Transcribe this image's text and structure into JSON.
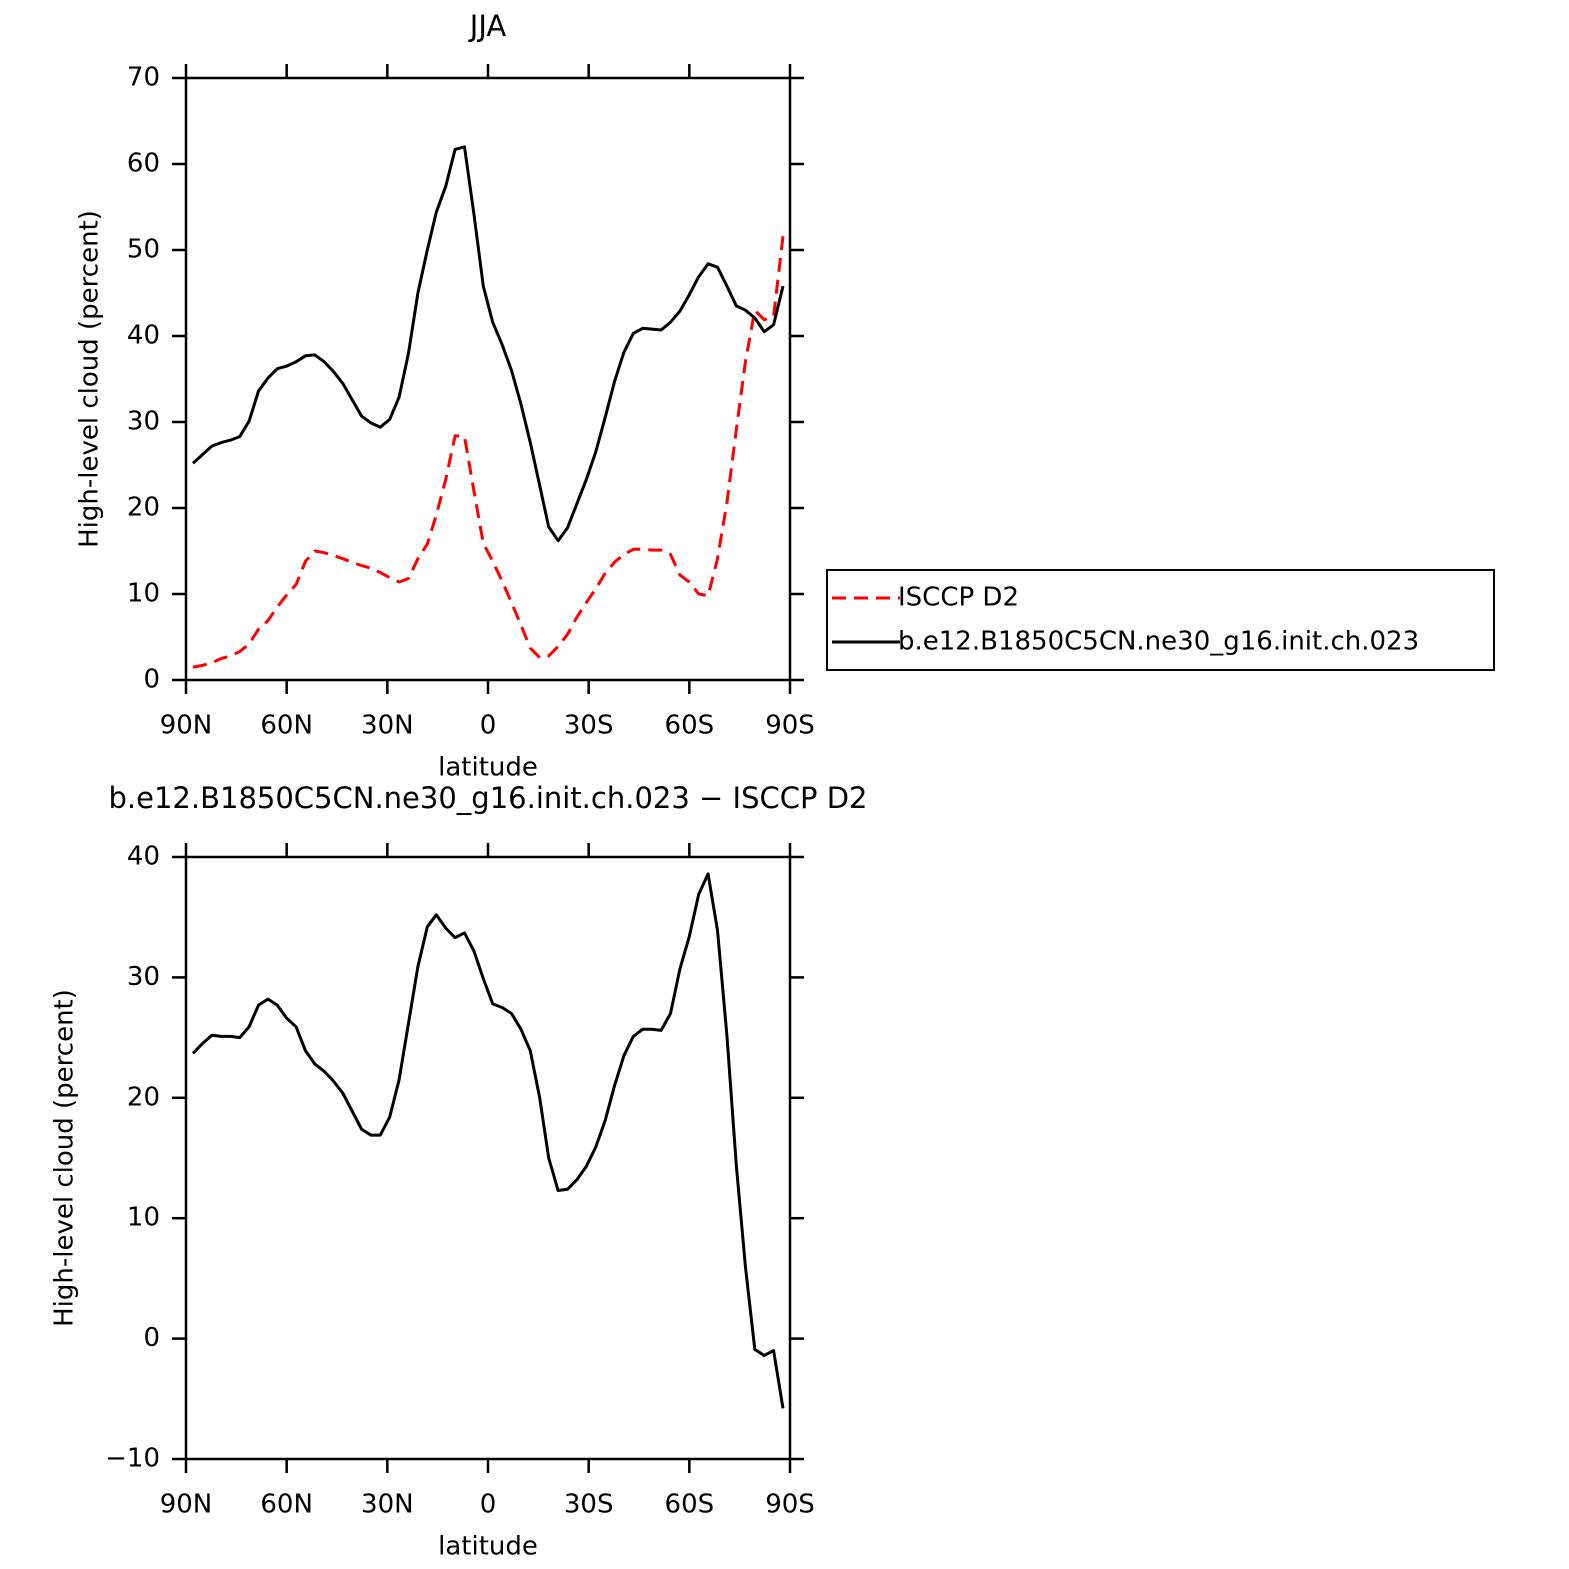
{
  "chart_data": [
    {
      "type": "line",
      "title": "JJA",
      "xlabel": "latitude",
      "ylabel": "High-level cloud (percent)",
      "x": [
        87.9,
        85.1,
        82.3,
        79.5,
        76.7,
        74.0,
        71.2,
        68.4,
        65.6,
        62.8,
        60.0,
        57.2,
        54.4,
        51.6,
        48.8,
        46.1,
        43.3,
        40.5,
        37.7,
        34.9,
        32.1,
        29.3,
        26.5,
        23.7,
        20.9,
        18.1,
        15.4,
        12.6,
        9.8,
        7.0,
        4.2,
        1.4,
        -1.4,
        -4.2,
        -7.0,
        -9.8,
        -12.6,
        -15.4,
        -18.1,
        -20.9,
        -23.7,
        -26.5,
        -29.3,
        -32.1,
        -34.9,
        -37.7,
        -40.5,
        -43.3,
        -46.1,
        -48.8,
        -51.6,
        -54.4,
        -57.2,
        -60.0,
        -62.8,
        -65.6,
        -68.4,
        -71.2,
        -74.0,
        -76.7,
        -79.5,
        -82.3,
        -85.1,
        -87.9
      ],
      "series": [
        {
          "name": "ISCCP D2",
          "color": "#ff0000",
          "dash": "dashed",
          "values": [
            1.5,
            1.7,
            2.0,
            2.5,
            2.8,
            3.3,
            4.2,
            5.9,
            6.9,
            8.5,
            9.9,
            11.1,
            13.8,
            15.0,
            14.8,
            14.5,
            14.1,
            13.7,
            13.3,
            13.0,
            12.5,
            11.9,
            11.4,
            11.8,
            14.1,
            15.8,
            19.2,
            23.3,
            28.4,
            28.3,
            22.0,
            15.9,
            13.8,
            11.5,
            9.0,
            6.4,
            3.7,
            2.6,
            2.8,
            3.9,
            5.3,
            7.3,
            9.0,
            10.6,
            12.4,
            13.7,
            14.6,
            15.2,
            15.2,
            15.1,
            15.1,
            14.6,
            12.2,
            11.4,
            10.0,
            9.8,
            14.1,
            20.6,
            29.1,
            37,
            43,
            41.9,
            42.3,
            51.6
          ]
        },
        {
          "name": "b.e12.B1850C5CN.ne30_g16.init.ch.023",
          "color": "#000000",
          "dash": "solid",
          "values": [
            25.2,
            26.2,
            27.2,
            27.6,
            27.9,
            28.3,
            30.1,
            33.6,
            35.1,
            36.2,
            36.5,
            37,
            37.7,
            37.8,
            37,
            35.9,
            34.5,
            32.6,
            30.7,
            29.9,
            29.4,
            30.3,
            32.9,
            38,
            45,
            50,
            54.4,
            57.4,
            61.7,
            62,
            54.2,
            45.8,
            41.6,
            39,
            36,
            32.1,
            27.6,
            22.6,
            17.8,
            16.2,
            17.7,
            20.5,
            23.3,
            26.5,
            30.5,
            34.7,
            38.1,
            40.3,
            40.9,
            40.8,
            40.7,
            41.6,
            42.9,
            44.8,
            46.9,
            48.4,
            48,
            45.8,
            43.5,
            43,
            42.1,
            40.5,
            41.3,
            45.8
          ]
        }
      ],
      "xlim": [
        90,
        -90
      ],
      "xticks": [
        {
          "value": 90,
          "label": "90N"
        },
        {
          "value": 60,
          "label": "60N"
        },
        {
          "value": 30,
          "label": "30N"
        },
        0,
        {
          "value": -30,
          "label": "30S"
        },
        {
          "value": -60,
          "label": "60S"
        },
        {
          "value": -90,
          "label": "90S"
        }
      ],
      "ylim": [
        0,
        70
      ],
      "yticks": [
        0,
        10,
        20,
        30,
        40,
        50,
        60,
        70
      ],
      "legend": "outside right"
    },
    {
      "type": "line",
      "title": "b.e12.B1850C5CN.ne30_g16.init.ch.023 − ISCCP D2",
      "xlabel": "latitude",
      "ylabel": "High-level cloud (percent)",
      "x": [
        87.9,
        85.1,
        82.3,
        79.5,
        76.7,
        74.0,
        71.2,
        68.4,
        65.6,
        62.8,
        60.0,
        57.2,
        54.4,
        51.6,
        48.8,
        46.1,
        43.3,
        40.5,
        37.7,
        34.9,
        32.1,
        29.3,
        26.5,
        23.7,
        20.9,
        18.1,
        15.4,
        12.6,
        9.8,
        7.0,
        4.2,
        1.4,
        -1.4,
        -4.2,
        -7.0,
        -9.8,
        -12.6,
        -15.4,
        -18.1,
        -20.9,
        -23.7,
        -26.5,
        -29.3,
        -32.1,
        -34.9,
        -37.7,
        -40.5,
        -43.3,
        -46.1,
        -48.8,
        -51.6,
        -54.4,
        -57.2,
        -60.0,
        -62.8,
        -65.6,
        -68.4,
        -71.2,
        -74.0,
        -76.7,
        -79.5,
        -82.3,
        -85.1,
        -87.9
      ],
      "color": "#000000",
      "values": [
        23.7,
        24.5,
        25.2,
        25.1,
        25.1,
        25.0,
        25.9,
        27.7,
        28.2,
        27.7,
        26.6,
        25.9,
        23.9,
        22.8,
        22.2,
        21.4,
        20.4,
        18.9,
        17.4,
        16.9,
        16.9,
        18.4,
        21.5,
        26.2,
        30.9,
        34.2,
        35.2,
        34.1,
        33.3,
        33.7,
        32.2,
        29.9,
        27.8,
        27.5,
        27,
        25.7,
        23.9,
        20,
        15,
        12.3,
        12.4,
        13.2,
        14.3,
        15.9,
        18.1,
        21,
        23.5,
        25.1,
        25.7,
        25.7,
        25.6,
        27,
        30.7,
        33.4,
        36.9,
        38.6,
        33.9,
        25.2,
        14.4,
        6,
        -0.9,
        -1.4,
        -1.0,
        -5.8
      ],
      "xlim": [
        90,
        -90
      ],
      "xticks": [
        {
          "value": 90,
          "label": "90N"
        },
        {
          "value": 60,
          "label": "60N"
        },
        {
          "value": 30,
          "label": "30N"
        },
        0,
        {
          "value": -30,
          "label": "30S"
        },
        {
          "value": -60,
          "label": "60S"
        },
        {
          "value": -90,
          "label": "90S"
        }
      ],
      "ylim": [
        -10,
        40
      ],
      "yticks": [
        {
          "value": -10,
          "label": "−10"
        },
        0,
        10,
        20,
        30,
        40
      ]
    }
  ]
}
